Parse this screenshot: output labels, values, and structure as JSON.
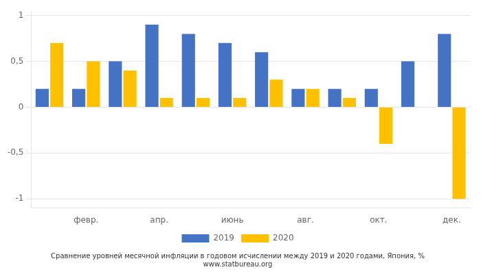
{
  "chart_data": {
    "type": "bar",
    "categories": [
      null,
      "февр.",
      null,
      "апр.",
      null,
      "июнь",
      null,
      "авг.",
      null,
      "окт.",
      null,
      "дек."
    ],
    "series": [
      {
        "name": "2019",
        "color": "#4472C4",
        "values": [
          0.2,
          0.2,
          0.5,
          0.9,
          0.8,
          0.7,
          0.6,
          0.2,
          0.2,
          0.2,
          0.5,
          0.8
        ]
      },
      {
        "name": "2020",
        "color": "#FFC000",
        "values": [
          0.7,
          0.5,
          0.4,
          0.1,
          0.1,
          0.1,
          0.3,
          0.2,
          0.1,
          -0.4,
          0.0,
          -1.0
        ]
      }
    ],
    "ylim": [
      -1.1,
      1.05
    ],
    "yticks": [
      -1,
      {
        "value": -0.5,
        "label": "-0,5"
      },
      0,
      {
        "value": 0.5,
        "label": "0,5"
      },
      1
    ],
    "grid": "y",
    "legend": "bottom",
    "annotations": [
      "Сравнение уровней месячной инфляции в годовом исчислении между 2019 и 2020 годами, Япония, %",
      "www.statbureau.org"
    ]
  }
}
